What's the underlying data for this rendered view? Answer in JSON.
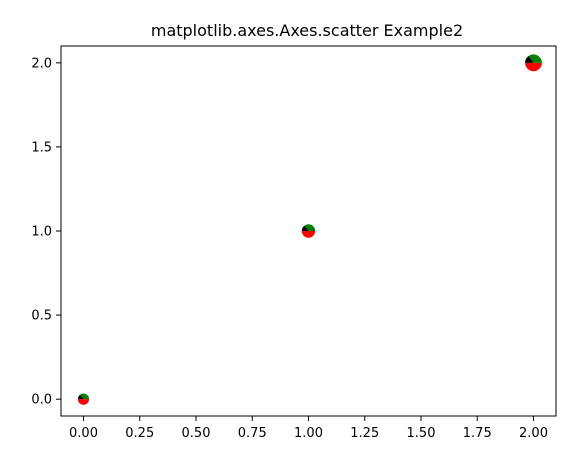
{
  "chart_data": {
    "type": "scatter",
    "title": "matplotlib.axes.Axes.scatter Example2",
    "xlabel": "",
    "ylabel": "",
    "xlim": [
      -0.1,
      2.1
    ],
    "ylim": [
      -0.1,
      2.1
    ],
    "xticks": [
      0.0,
      0.25,
      0.5,
      0.75,
      1.0,
      1.25,
      1.5,
      1.75,
      2.0
    ],
    "xtick_labels": [
      "0.00",
      "0.25",
      "0.50",
      "0.75",
      "1.00",
      "1.25",
      "1.50",
      "1.75",
      "2.00"
    ],
    "yticks": [
      0.0,
      0.5,
      1.0,
      1.5,
      2.0
    ],
    "ytick_labels": [
      "0.0",
      "0.5",
      "1.0",
      "1.5",
      "2.0"
    ],
    "grid": false,
    "marker": "pie",
    "pie_fractions": [
      {
        "color": "#ff0000",
        "fraction": 0.5
      },
      {
        "color": "#008000",
        "fraction": 0.35
      },
      {
        "color": "#000000",
        "fraction": 0.15
      }
    ],
    "points": [
      {
        "x": 0,
        "y": 0,
        "size": 1
      },
      {
        "x": 1,
        "y": 1,
        "size": 1.2
      },
      {
        "x": 2,
        "y": 2,
        "size": 1.5
      }
    ]
  }
}
